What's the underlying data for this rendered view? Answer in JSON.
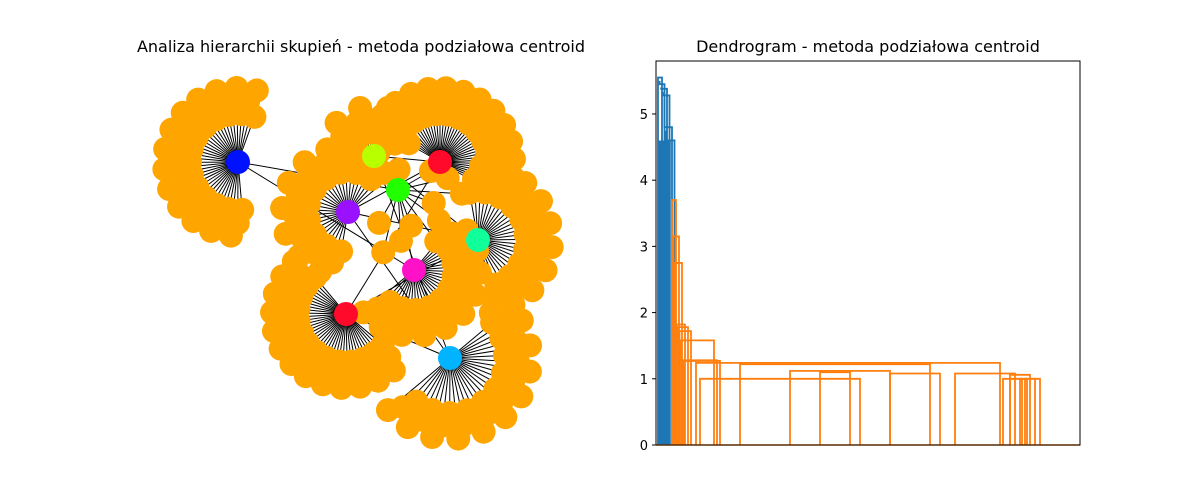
{
  "chart_data": [
    {
      "type": "network",
      "title": "Analiza hierarchii skupień - metoda podziałowa centroid",
      "hub_nodes": [
        {
          "name": "hub-blue",
          "color": "#0011ff",
          "leaf_count": 40
        },
        {
          "name": "hub-lime",
          "color": "#b8ff00",
          "leaf_count": 14
        },
        {
          "name": "hub-red-top",
          "color": "#ff0a2a",
          "leaf_count": 40
        },
        {
          "name": "hub-green",
          "color": "#22ff00",
          "leaf_count": 10
        },
        {
          "name": "hub-purple",
          "color": "#9a11ff",
          "leaf_count": 30
        },
        {
          "name": "hub-teal",
          "color": "#11ff9a",
          "leaf_count": 30
        },
        {
          "name": "hub-magenta",
          "color": "#ff11c8",
          "leaf_count": 30
        },
        {
          "name": "hub-red-bottom",
          "color": "#ff0a2a",
          "leaf_count": 40
        },
        {
          "name": "hub-cyan",
          "color": "#00b4ff",
          "leaf_count": 30
        }
      ],
      "leaf_color": "#ffa500",
      "edge_color": "#000000"
    },
    {
      "type": "dendrogram",
      "title": "Dendrogram - metoda podziałowa centroid",
      "yticks": [
        "0",
        "1",
        "2",
        "3",
        "4",
        "5"
      ],
      "ylim": [
        0,
        5.8
      ],
      "series": [
        {
          "color": "#1f77b4",
          "merge_heights": [
            5.55,
            5.45,
            5.38,
            5.28,
            4.8,
            4.6
          ]
        },
        {
          "color": "#ff7f0e",
          "merge_heights": [
            3.7,
            3.15,
            2.75,
            1.82,
            1.78,
            1.72,
            1.58,
            1.28,
            1.27,
            1.24,
            1.22,
            1.12,
            1.1,
            1.08,
            1.08,
            1.06,
            1.0,
            1.0,
            1.0,
            1.0,
            1.0
          ]
        }
      ]
    }
  ]
}
